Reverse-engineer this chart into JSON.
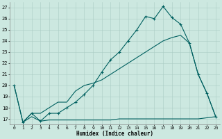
{
  "xlabel": "Humidex (Indice chaleur)",
  "bg_color": "#cce8e0",
  "grid_color": "#aaccc4",
  "line_color": "#006060",
  "ylim": [
    16.5,
    27.5
  ],
  "xlim": [
    -0.5,
    23.5
  ],
  "yticks": [
    17,
    18,
    19,
    20,
    21,
    22,
    23,
    24,
    25,
    26,
    27
  ],
  "xticks": [
    0,
    1,
    2,
    3,
    4,
    5,
    6,
    7,
    8,
    9,
    10,
    11,
    12,
    13,
    14,
    15,
    16,
    17,
    18,
    19,
    20,
    21,
    22,
    23
  ],
  "line1_x": [
    0,
    1,
    2,
    3,
    4,
    5,
    6,
    7,
    8,
    9,
    10,
    11,
    12,
    13,
    14,
    15,
    16,
    17,
    18,
    19,
    20,
    21,
    22,
    23
  ],
  "line1_y": [
    20.0,
    16.7,
    17.5,
    16.8,
    17.5,
    17.5,
    18.0,
    18.5,
    19.2,
    20.0,
    21.2,
    22.3,
    23.0,
    24.0,
    25.0,
    26.2,
    26.0,
    27.1,
    26.1,
    25.5,
    23.8,
    21.0,
    19.3,
    17.2
  ],
  "line2_x": [
    0,
    1,
    2,
    3,
    4,
    5,
    6,
    7,
    8,
    9,
    10,
    11,
    12,
    13,
    14,
    15,
    16,
    17,
    18,
    19,
    20,
    21,
    22,
    23
  ],
  "line2_y": [
    20.0,
    16.7,
    17.5,
    17.5,
    18.0,
    18.5,
    18.5,
    19.5,
    20.0,
    20.2,
    20.5,
    21.0,
    21.5,
    22.0,
    22.5,
    23.0,
    23.5,
    24.0,
    24.3,
    24.5,
    23.8,
    21.0,
    19.3,
    17.2
  ],
  "line3_x": [
    1,
    2,
    3,
    4,
    5,
    6,
    7,
    8,
    9,
    10,
    11,
    12,
    13,
    14,
    15,
    16,
    17,
    18,
    19,
    20,
    21,
    22,
    23
  ],
  "line3_y": [
    16.7,
    17.2,
    16.8,
    16.9,
    16.9,
    16.9,
    16.9,
    16.9,
    16.9,
    16.9,
    16.9,
    17.0,
    17.0,
    17.0,
    17.0,
    17.0,
    17.0,
    17.0,
    17.0,
    17.0,
    17.0,
    17.1,
    17.2
  ]
}
